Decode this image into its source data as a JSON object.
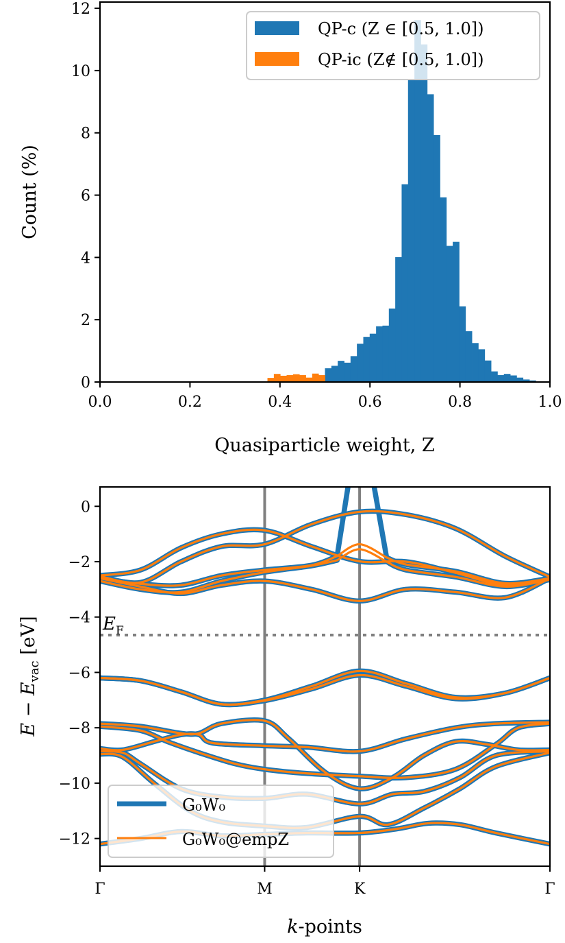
{
  "chart_data": [
    {
      "type": "bar",
      "subtype": "histogram",
      "xlabel": "Quasiparticle weight, Z",
      "ylabel": "Count (%)",
      "xlim": [
        0.0,
        1.0
      ],
      "ylim": [
        0,
        12.2
      ],
      "xticks": [
        "0.0",
        "0.2",
        "0.4",
        "0.6",
        "0.8",
        "1.0"
      ],
      "yticks": [
        "0",
        "2",
        "4",
        "6",
        "8",
        "10",
        "12"
      ],
      "legend_position": "top-right",
      "series": [
        {
          "name": "QP-c (Z ∈ [0.5, 1.0])",
          "color": "#1f77b4",
          "x_start": 0.5,
          "bin_width": 0.0142,
          "values": [
            0.44,
            0.52,
            0.68,
            0.62,
            0.83,
            1.23,
            1.45,
            1.55,
            1.79,
            1.81,
            2.36,
            4.01,
            6.35,
            9.72,
            11.62,
            10.84,
            9.24,
            7.93,
            5.93,
            4.37,
            4.5,
            2.43,
            1.63,
            1.25,
            1.05,
            0.69,
            0.34,
            0.22,
            0.26,
            0.21,
            0.14,
            0.08,
            0.05
          ]
        },
        {
          "name": "QP-ic (Z∉ [0.5, 1.0])",
          "color": "#ff7f0e",
          "x_start": 0.358,
          "bin_width": 0.0142,
          "values": [
            0.02,
            0.13,
            0.26,
            0.2,
            0.22,
            0.25,
            0.22,
            0.14,
            0.27,
            0.22
          ]
        }
      ]
    },
    {
      "type": "line",
      "subtype": "band-structure",
      "xlabel": {
        "italic": "k",
        "rest": "-points"
      },
      "ylabel": {
        "E1": "E",
        "minus": " − ",
        "E2": "E",
        "sub": "vac",
        "unit": " [eV]"
      },
      "ylim": [
        -13.0,
        0.7
      ],
      "yticks": [
        "0",
        "−2",
        "−4",
        "−6",
        "−8",
        "−10",
        "−12"
      ],
      "ytick_values": [
        0,
        -2,
        -4,
        -6,
        -8,
        -10,
        -12
      ],
      "xticks": [
        {
          "label": "Γ",
          "k": 0.0
        },
        {
          "label": "M",
          "k": 0.366
        },
        {
          "label": "K",
          "k": 0.577
        },
        {
          "label": "Γ",
          "k": 1.0
        }
      ],
      "fermi_level": {
        "value": -4.65,
        "main": "E",
        "sub": "F"
      },
      "legend_position": "bottom-left",
      "series": [
        {
          "name": "G₀W₀",
          "color": "#1f77b4"
        },
        {
          "name": "G₀W₀@empZ",
          "color": "#ff7f0e"
        }
      ],
      "shared_bands": [
        [
          [
            0,
            -2.53
          ],
          [
            0.09,
            -2.75
          ],
          [
            0.18,
            -2.0
          ],
          [
            0.27,
            -1.45
          ],
          [
            0.366,
            -1.37
          ],
          [
            0.47,
            -0.65
          ],
          [
            0.577,
            -0.2
          ],
          [
            0.68,
            -0.3
          ],
          [
            0.79,
            -0.8
          ],
          [
            0.9,
            -1.8
          ],
          [
            1.0,
            -2.55
          ]
        ],
        [
          [
            0,
            -2.5
          ],
          [
            0.09,
            -2.3
          ],
          [
            0.18,
            -1.5
          ],
          [
            0.27,
            -1.0
          ],
          [
            0.366,
            -0.87
          ],
          [
            0.47,
            -1.45
          ],
          [
            0.577,
            -1.99
          ],
          [
            0.68,
            -2.0
          ],
          [
            0.79,
            -2.4
          ],
          [
            0.9,
            -2.85
          ],
          [
            1.0,
            -2.6
          ]
        ],
        [
          [
            0,
            -2.6
          ],
          [
            0.09,
            -2.8
          ],
          [
            0.18,
            -2.85
          ],
          [
            0.27,
            -2.5
          ],
          [
            0.366,
            -2.3
          ],
          [
            0.47,
            -2.13
          ],
          [
            0.527,
            -1.8
          ]
        ],
        [
          [
            0.637,
            -1.85
          ],
          [
            0.68,
            -2.1
          ],
          [
            0.79,
            -2.35
          ],
          [
            0.9,
            -2.78
          ],
          [
            1.0,
            -2.6
          ]
        ],
        [
          [
            0,
            -2.7
          ],
          [
            0.09,
            -3.0
          ],
          [
            0.18,
            -3.1
          ],
          [
            0.27,
            -2.7
          ],
          [
            0.366,
            -2.38
          ],
          [
            0.47,
            -2.15
          ],
          [
            0.527,
            -1.95
          ]
        ],
        [
          [
            0.637,
            -2.0
          ],
          [
            0.68,
            -2.3
          ],
          [
            0.79,
            -2.55
          ],
          [
            0.9,
            -2.9
          ],
          [
            1.0,
            -2.65
          ]
        ],
        [
          [
            0,
            -2.6
          ],
          [
            0.09,
            -2.9
          ],
          [
            0.18,
            -3.15
          ],
          [
            0.27,
            -2.85
          ],
          [
            0.366,
            -2.7
          ],
          [
            0.47,
            -3.0
          ],
          [
            0.577,
            -3.42
          ],
          [
            0.68,
            -3.0
          ],
          [
            0.79,
            -3.1
          ],
          [
            0.9,
            -3.3
          ],
          [
            1.0,
            -2.6
          ]
        ],
        [
          [
            0,
            -6.2
          ],
          [
            0.09,
            -6.3
          ],
          [
            0.18,
            -6.7
          ],
          [
            0.27,
            -7.15
          ],
          [
            0.366,
            -7.0
          ],
          [
            0.47,
            -6.5
          ],
          [
            0.577,
            -5.95
          ],
          [
            0.68,
            -6.4
          ],
          [
            0.79,
            -6.9
          ],
          [
            0.9,
            -6.75
          ],
          [
            1.0,
            -6.2
          ]
        ],
        [
          [
            0,
            -6.2
          ],
          [
            0.09,
            -6.3
          ],
          [
            0.18,
            -6.7
          ],
          [
            0.27,
            -7.15
          ],
          [
            0.366,
            -7.02
          ],
          [
            0.47,
            -6.6
          ],
          [
            0.577,
            -6.1
          ],
          [
            0.68,
            -6.5
          ],
          [
            0.79,
            -6.95
          ],
          [
            0.9,
            -6.75
          ],
          [
            1.0,
            -6.2
          ]
        ],
        [
          [
            0,
            -7.85
          ],
          [
            0.09,
            -7.95
          ],
          [
            0.18,
            -8.2
          ],
          [
            0.22,
            -8.2
          ],
          [
            0.27,
            -7.85
          ],
          [
            0.366,
            -7.75
          ],
          [
            0.42,
            -8.4
          ],
          [
            0.5,
            -9.6
          ],
          [
            0.577,
            -10.2
          ],
          [
            0.65,
            -9.8
          ],
          [
            0.72,
            -9.0
          ],
          [
            0.79,
            -8.5
          ],
          [
            0.86,
            -8.6
          ],
          [
            0.93,
            -8.8
          ],
          [
            1.0,
            -8.8
          ]
        ],
        [
          [
            0,
            -7.95
          ],
          [
            0.09,
            -8.1
          ],
          [
            0.15,
            -8.5
          ],
          [
            0.22,
            -8.9
          ],
          [
            0.3,
            -9.3
          ],
          [
            0.366,
            -9.5
          ],
          [
            0.46,
            -9.65
          ],
          [
            0.577,
            -9.75
          ],
          [
            0.68,
            -9.8
          ],
          [
            0.79,
            -9.5
          ],
          [
            0.88,
            -8.6
          ],
          [
            0.93,
            -8.0
          ],
          [
            1.0,
            -7.85
          ]
        ],
        [
          [
            0,
            -8.75
          ],
          [
            0.05,
            -8.8
          ],
          [
            0.12,
            -8.5
          ],
          [
            0.18,
            -8.25
          ],
          [
            0.22,
            -8.25
          ],
          [
            0.25,
            -8.55
          ],
          [
            0.366,
            -8.65
          ],
          [
            0.46,
            -8.7
          ],
          [
            0.577,
            -8.85
          ],
          [
            0.68,
            -8.4
          ],
          [
            0.79,
            -8.0
          ],
          [
            0.88,
            -7.85
          ],
          [
            1.0,
            -7.8
          ]
        ],
        [
          [
            0,
            -8.85
          ],
          [
            0.05,
            -8.9
          ],
          [
            0.09,
            -9.3
          ],
          [
            0.18,
            -10.2
          ],
          [
            0.27,
            -10.5
          ],
          [
            0.366,
            -10.55
          ],
          [
            0.46,
            -10.4
          ],
          [
            0.577,
            -10.75
          ],
          [
            0.65,
            -10.4
          ],
          [
            0.72,
            -10.3
          ],
          [
            0.8,
            -9.8
          ],
          [
            0.88,
            -9.0
          ],
          [
            1.0,
            -8.85
          ]
        ],
        [
          [
            0,
            -8.95
          ],
          [
            0.05,
            -9.05
          ],
          [
            0.12,
            -10.0
          ],
          [
            0.2,
            -11.0
          ],
          [
            0.27,
            -11.4
          ],
          [
            0.366,
            -11.55
          ],
          [
            0.46,
            -11.6
          ],
          [
            0.577,
            -11.2
          ],
          [
            0.64,
            -11.5
          ],
          [
            0.72,
            -10.9
          ],
          [
            0.8,
            -10.2
          ],
          [
            0.88,
            -9.4
          ],
          [
            1.0,
            -8.9
          ]
        ],
        [
          [
            0,
            -12.2
          ],
          [
            0.09,
            -12.0
          ],
          [
            0.18,
            -11.75
          ],
          [
            0.27,
            -11.9
          ],
          [
            0.366,
            -11.85
          ],
          [
            0.46,
            -11.8
          ],
          [
            0.577,
            -11.8
          ],
          [
            0.66,
            -11.65
          ],
          [
            0.73,
            -11.45
          ],
          [
            0.8,
            -11.5
          ],
          [
            0.88,
            -11.8
          ],
          [
            1.0,
            -12.2
          ]
        ]
      ],
      "g0w0_only_bands": [
        [
          [
            0.527,
            -1.8
          ],
          [
            0.556,
            1.2
          ]
        ],
        [
          [
            0.604,
            1.2
          ],
          [
            0.637,
            -1.85
          ]
        ]
      ],
      "empz_only_bands": [
        [
          [
            0.527,
            -1.8
          ],
          [
            0.577,
            -1.37
          ],
          [
            0.637,
            -1.85
          ]
        ],
        [
          [
            0.527,
            -1.95
          ],
          [
            0.577,
            -1.55
          ],
          [
            0.637,
            -2.0
          ]
        ]
      ]
    }
  ]
}
